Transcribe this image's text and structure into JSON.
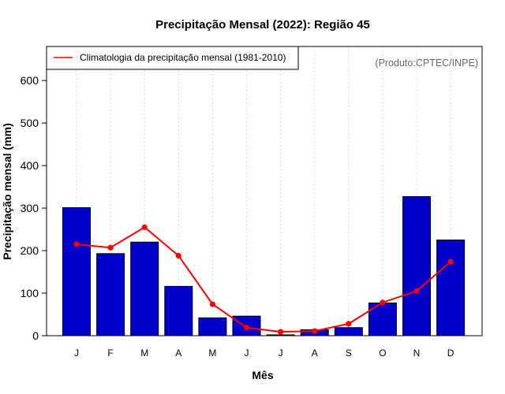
{
  "chart_data": {
    "type": "bar",
    "title": "Precipitação Mensal (2022): Região 45",
    "xlabel": "Mês",
    "ylabel": "Precipitação mensal (mm)",
    "ylim": [
      0,
      680
    ],
    "yticks": [
      0,
      100,
      200,
      300,
      400,
      500,
      600
    ],
    "categories": [
      "J",
      "F",
      "M",
      "A",
      "M",
      "J",
      "J",
      "A",
      "S",
      "O",
      "N",
      "D"
    ],
    "series": [
      {
        "name": "Precipitação mensal 2022",
        "type": "bar",
        "color": "#0000cc",
        "values": [
          301,
          193,
          220,
          116,
          42,
          46,
          2,
          14,
          19,
          77,
          327,
          225
        ]
      },
      {
        "name": "Climatologia da precipitação mensal (1981-2010)",
        "type": "line",
        "color": "#ff0000",
        "values": [
          215,
          207,
          255,
          188,
          74,
          19,
          9,
          11,
          28,
          78,
          105,
          174
        ]
      }
    ],
    "legend": {
      "label": "Climatologia da precipitação mensal (1981-2010)",
      "position": "top-left"
    },
    "credit": "(Produto:CPTEC/INPE)",
    "grid": "vertical dotted"
  }
}
